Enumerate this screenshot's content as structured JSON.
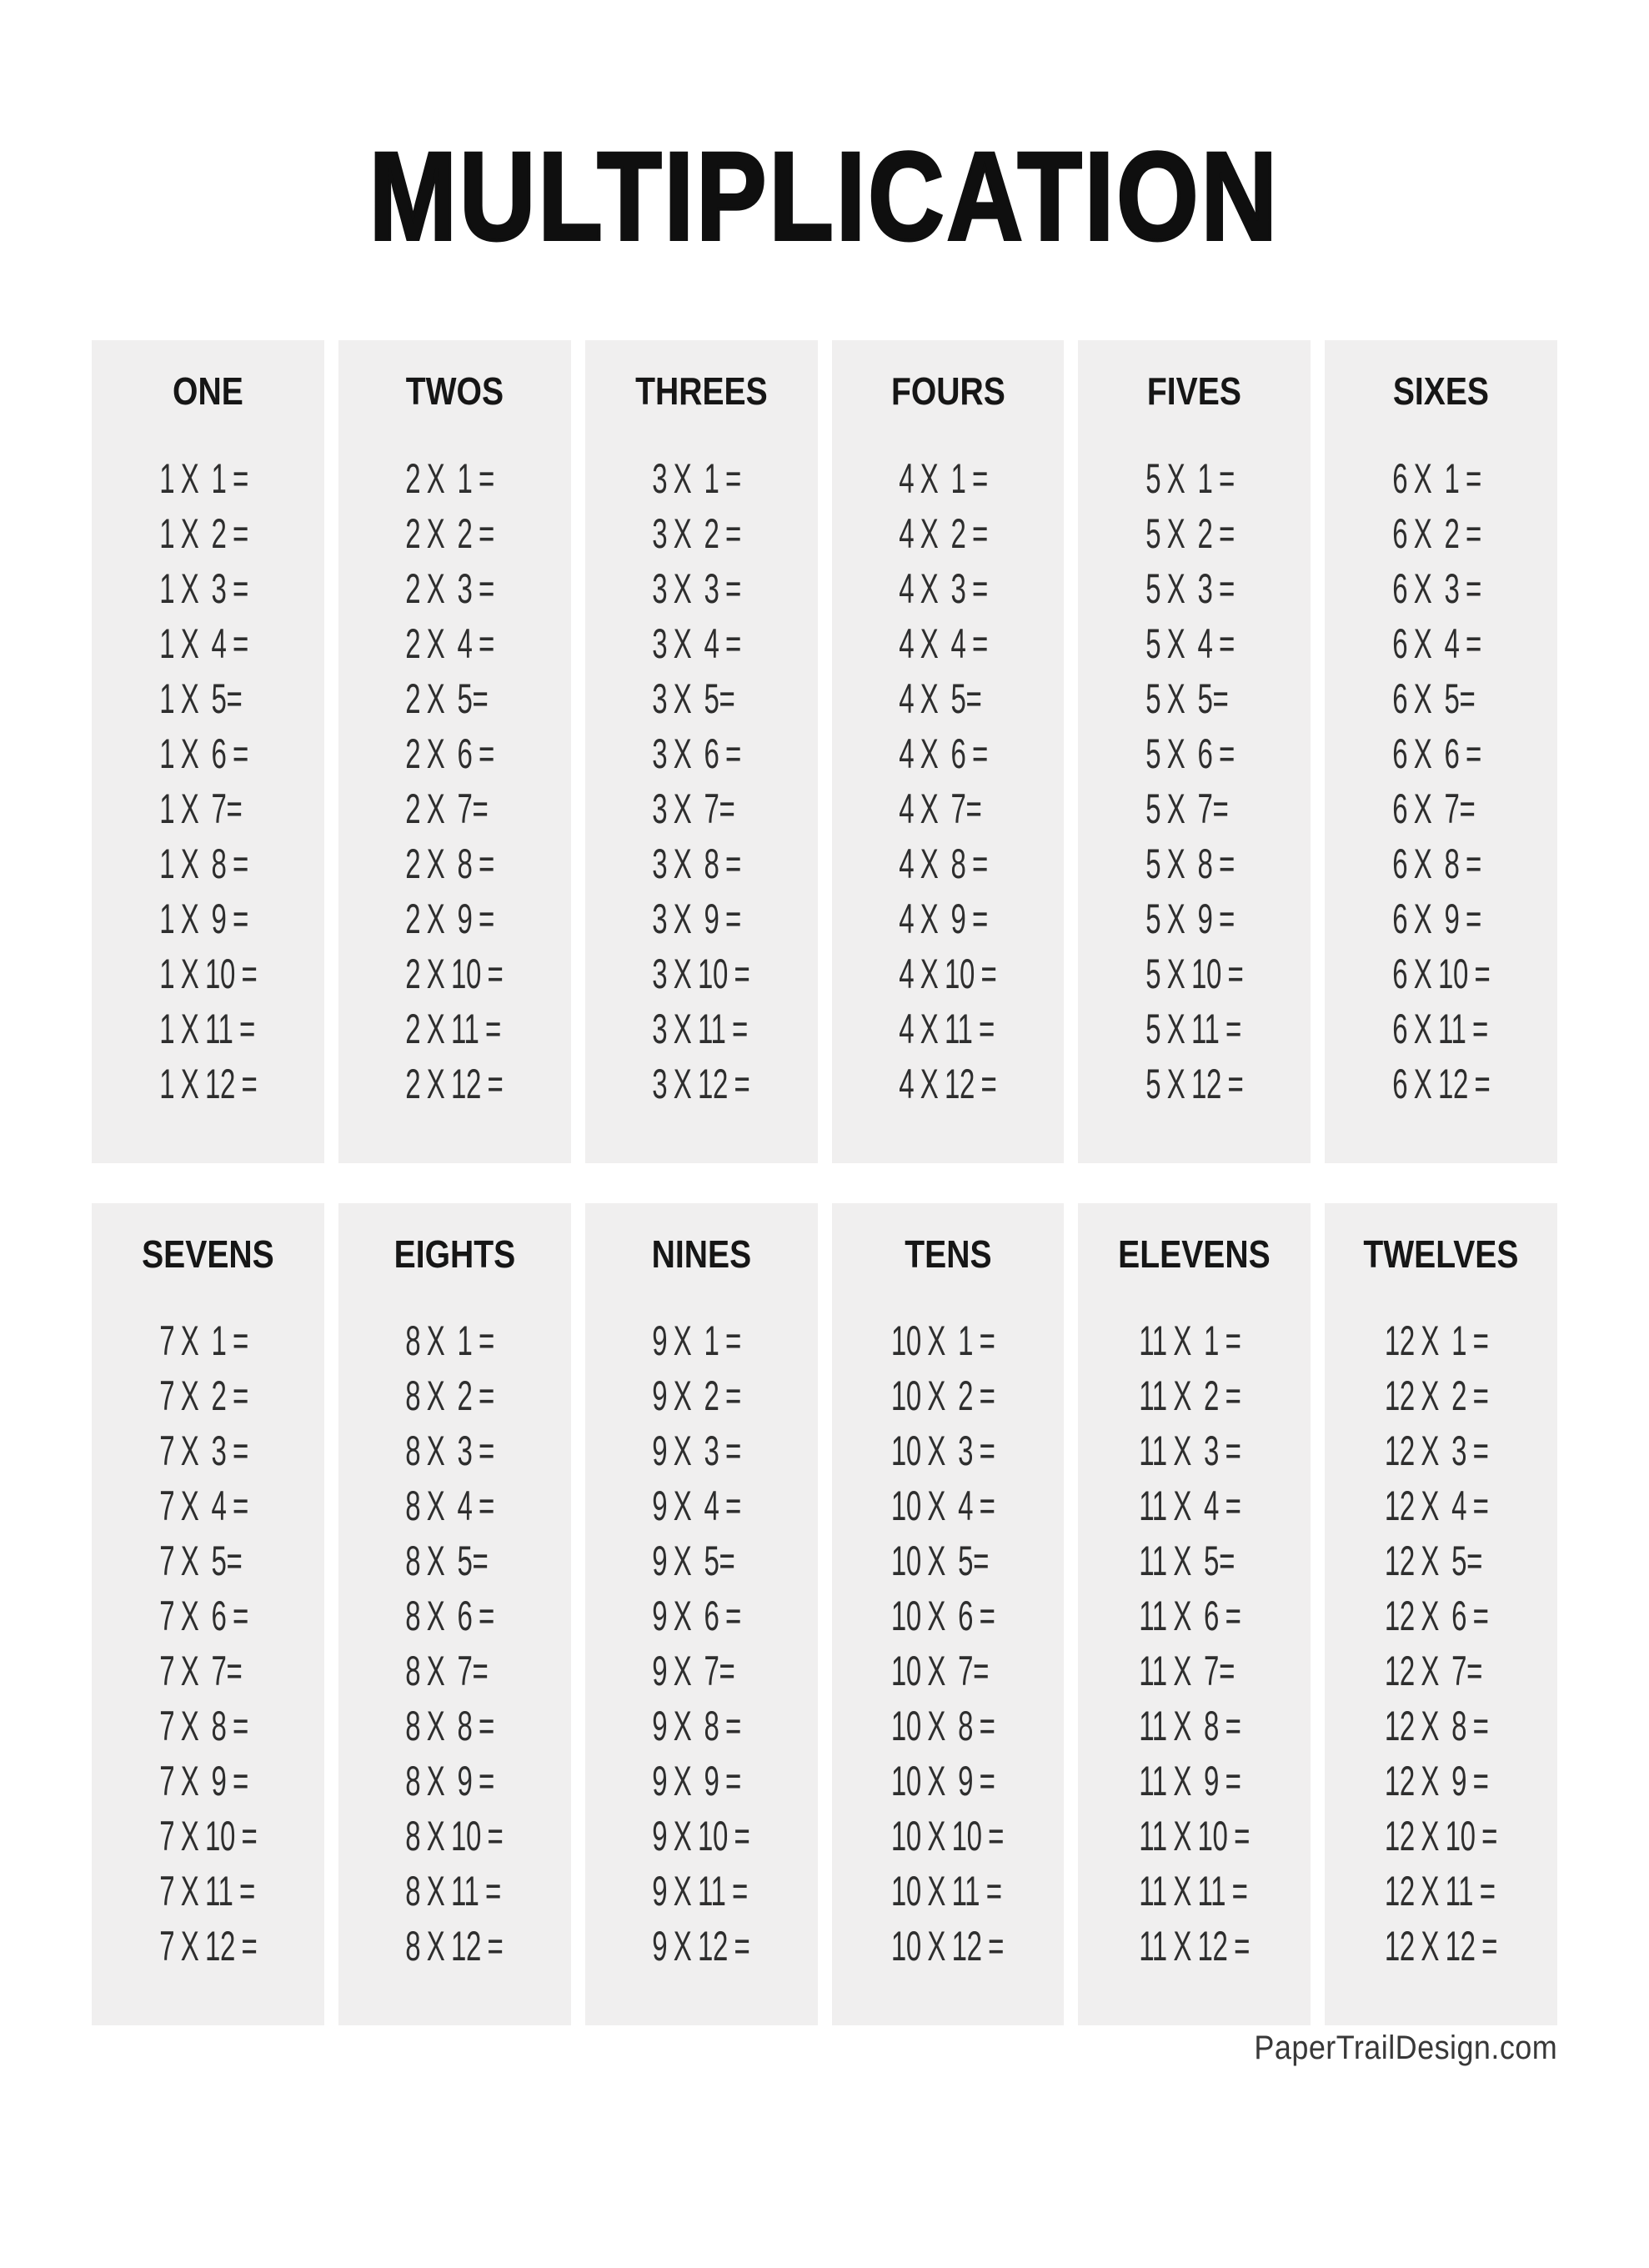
{
  "title": "MULTIPLICATION",
  "footer": {
    "credit": "PaperTrailDesign.com"
  },
  "colors": {
    "page_bg": "#ffffff",
    "card_bg": "#f0efef",
    "title_color": "#0f0f0f",
    "header_color": "#161616",
    "problem_color": "#2e2e2e",
    "footer_color": "#383838"
  },
  "tables": [
    {
      "header": "ONE",
      "problems": [
        "1 X  1 =",
        "1 X  2 =",
        "1 X  3 =",
        "1 X  4 =",
        "1 X  5=",
        "1 X  6 =",
        "1 X  7=",
        "1 X  8 =",
        "1 X  9 =",
        "1 X 10 =",
        "1 X 11 =",
        "1 X 12 ="
      ]
    },
    {
      "header": "TWOS",
      "problems": [
        "2 X  1 =",
        "2 X  2 =",
        "2 X  3 =",
        "2 X  4 =",
        "2 X  5=",
        "2 X  6 =",
        "2 X  7=",
        "2 X  8 =",
        "2 X  9 =",
        "2 X 10 =",
        "2 X 11 =",
        "2 X 12 ="
      ]
    },
    {
      "header": "THREES",
      "problems": [
        "3 X  1 =",
        "3 X  2 =",
        "3 X  3 =",
        "3 X  4 =",
        "3 X  5=",
        "3 X  6 =",
        "3 X  7=",
        "3 X  8 =",
        "3 X  9 =",
        "3 X 10 =",
        "3 X 11 =",
        "3 X 12 ="
      ]
    },
    {
      "header": "FOURS",
      "problems": [
        "4 X  1 =",
        "4 X  2 =",
        "4 X  3 =",
        "4 X  4 =",
        "4 X  5=",
        "4 X  6 =",
        "4 X  7=",
        "4 X  8 =",
        "4 X  9 =",
        "4 X 10 =",
        "4 X 11 =",
        "4 X 12 ="
      ]
    },
    {
      "header": "FIVES",
      "problems": [
        "5 X  1 =",
        "5 X  2 =",
        "5 X  3 =",
        "5 X  4 =",
        "5 X  5=",
        "5 X  6 =",
        "5 X  7=",
        "5 X  8 =",
        "5 X  9 =",
        "5 X 10 =",
        "5 X 11 =",
        "5 X 12 ="
      ]
    },
    {
      "header": "SIXES",
      "problems": [
        "6 X  1 =",
        "6 X  2 =",
        "6 X  3 =",
        "6 X  4 =",
        "6 X  5=",
        "6 X  6 =",
        "6 X  7=",
        "6 X  8 =",
        "6 X  9 =",
        "6 X 10 =",
        "6 X 11 =",
        "6 X 12 ="
      ]
    },
    {
      "header": "SEVENS",
      "problems": [
        "7 X  1 =",
        "7 X  2 =",
        "7 X  3 =",
        "7 X  4 =",
        "7 X  5=",
        "7 X  6 =",
        "7 X  7=",
        "7 X  8 =",
        "7 X  9 =",
        "7 X 10 =",
        "7 X 11 =",
        "7 X 12 ="
      ]
    },
    {
      "header": "EIGHTS",
      "problems": [
        "8 X  1 =",
        "8 X  2 =",
        "8 X  3 =",
        "8 X  4 =",
        "8 X  5=",
        "8 X  6 =",
        "8 X  7=",
        "8 X  8 =",
        "8 X  9 =",
        "8 X 10 =",
        "8 X 11 =",
        "8 X 12 ="
      ]
    },
    {
      "header": "NINES",
      "problems": [
        "9 X  1 =",
        "9 X  2 =",
        "9 X  3 =",
        "9 X  4 =",
        "9 X  5=",
        "9 X  6 =",
        "9 X  7=",
        "9 X  8 =",
        "9 X  9 =",
        "9 X 10 =",
        "9 X 11 =",
        "9 X 12 ="
      ]
    },
    {
      "header": "TENS",
      "problems": [
        "10 X  1 =",
        "10 X  2 =",
        "10 X  3 =",
        "10 X  4 =",
        "10 X  5=",
        "10 X  6 =",
        "10 X  7=",
        "10 X  8 =",
        "10 X  9 =",
        "10 X 10 =",
        "10 X 11 =",
        "10 X 12 ="
      ]
    },
    {
      "header": "ELEVENS",
      "problems": [
        "11 X  1 =",
        "11 X  2 =",
        "11 X  3 =",
        "11 X  4 =",
        "11 X  5=",
        "11 X  6 =",
        "11 X  7=",
        "11 X  8 =",
        "11 X  9 =",
        "11 X 10 =",
        "11 X 11 =",
        "11 X 12 ="
      ]
    },
    {
      "header": "TWELVES",
      "problems": [
        "12 X  1 =",
        "12 X  2 =",
        "12 X  3 =",
        "12 X  4 =",
        "12 X  5=",
        "12 X  6 =",
        "12 X  7=",
        "12 X  8 =",
        "12 X  9 =",
        "12 X 10 =",
        "12 X 11 =",
        "12 X 12 ="
      ]
    }
  ]
}
